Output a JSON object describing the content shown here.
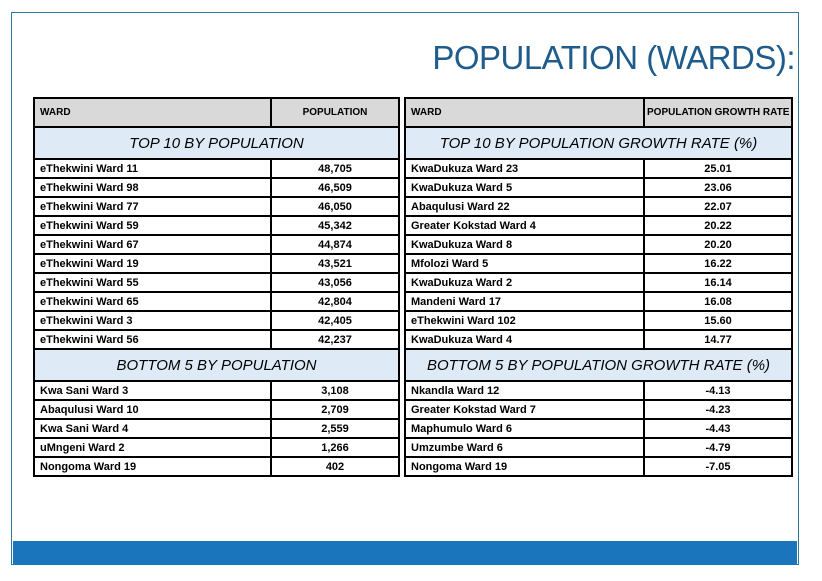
{
  "title": "POPULATION (WARDS):",
  "accent": {
    "bar_color": "#1B75BC",
    "frame_border_color": "#2F7795",
    "title_color": "#1F5C8C",
    "header_bg": "#D9D9D9",
    "band_bg": "#DEEAF6"
  },
  "tables": [
    {
      "id": "population-table",
      "columns": [
        "WARD",
        "POPULATION"
      ],
      "sections": [
        {
          "label": "TOP 10 BY POPULATION",
          "rows": [
            {
              "ward": "eThekwini Ward 11",
              "value": "48,705"
            },
            {
              "ward": "eThekwini Ward 98",
              "value": "46,509"
            },
            {
              "ward": "eThekwini Ward 77",
              "value": "46,050"
            },
            {
              "ward": "eThekwini Ward 59",
              "value": "45,342"
            },
            {
              "ward": "eThekwini Ward 67",
              "value": "44,874"
            },
            {
              "ward": "eThekwini Ward 19",
              "value": "43,521"
            },
            {
              "ward": "eThekwini Ward 55",
              "value": "43,056"
            },
            {
              "ward": "eThekwini Ward 65",
              "value": "42,804"
            },
            {
              "ward": "eThekwini Ward 3",
              "value": "42,405"
            },
            {
              "ward": "eThekwini Ward 56",
              "value": "42,237"
            }
          ]
        },
        {
          "label": "BOTTOM 5 BY POPULATION",
          "rows": [
            {
              "ward": "Kwa Sani Ward 3",
              "value": "3,108"
            },
            {
              "ward": "Abaqulusi Ward 10",
              "value": "2,709"
            },
            {
              "ward": "Kwa Sani Ward 4",
              "value": "2,559"
            },
            {
              "ward": "uMngeni Ward 2",
              "value": "1,266"
            },
            {
              "ward": "Nongoma Ward 19",
              "value": "402"
            }
          ]
        }
      ]
    },
    {
      "id": "growth-rate-table",
      "columns": [
        "WARD",
        "POPULATION GROWTH RATE"
      ],
      "sections": [
        {
          "label": "TOP 10 BY POPULATION GROWTH RATE (%)",
          "rows": [
            {
              "ward": "KwaDukuza Ward 23",
              "value": "25.01"
            },
            {
              "ward": "KwaDukuza Ward 5",
              "value": "23.06"
            },
            {
              "ward": "Abaqulusi Ward 22",
              "value": "22.07"
            },
            {
              "ward": "Greater Kokstad Ward 4",
              "value": "20.22"
            },
            {
              "ward": "KwaDukuza Ward 8",
              "value": "20.20"
            },
            {
              "ward": "Mfolozi Ward 5",
              "value": "16.22"
            },
            {
              "ward": "KwaDukuza Ward 2",
              "value": "16.14"
            },
            {
              "ward": "Mandeni Ward 17",
              "value": "16.08"
            },
            {
              "ward": "eThekwini Ward 102",
              "value": "15.60"
            },
            {
              "ward": "KwaDukuza Ward 4",
              "value": "14.77"
            }
          ]
        },
        {
          "label": "BOTTOM 5 BY POPULATION GROWTH RATE (%)",
          "rows": [
            {
              "ward": "Nkandla Ward 12",
              "value": "-4.13"
            },
            {
              "ward": "Greater Kokstad Ward 7",
              "value": "-4.23"
            },
            {
              "ward": "Maphumulo Ward 6",
              "value": "-4.43"
            },
            {
              "ward": "Umzumbe Ward 6",
              "value": "-4.79"
            },
            {
              "ward": "Nongoma Ward 19",
              "value": "-7.05"
            }
          ]
        }
      ]
    }
  ]
}
